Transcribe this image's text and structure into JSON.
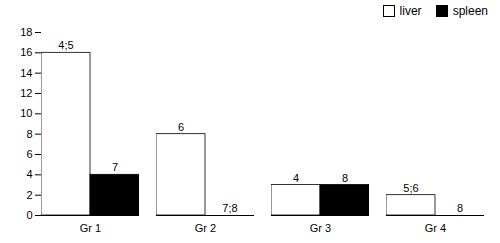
{
  "chart_data": {
    "type": "bar",
    "categories": [
      "Gr 1",
      "Gr 2",
      "Gr 3",
      "Gr 4"
    ],
    "series": [
      {
        "name": "liver",
        "color": "#ffffff",
        "values": [
          16,
          8,
          3,
          2
        ]
      },
      {
        "name": "spleen",
        "color": "#000000",
        "values": [
          4,
          0,
          3,
          0
        ]
      }
    ],
    "ylim": [
      0,
      18
    ],
    "yticks": [
      0,
      2,
      4,
      6,
      8,
      10,
      12,
      14,
      16,
      18
    ],
    "grid": false,
    "legend": "upper right",
    "annotations": [
      {
        "text": "4;5",
        "category": "Gr 1",
        "series": "liver"
      },
      {
        "text": "7",
        "category": "Gr 1",
        "series": "spleen"
      },
      {
        "text": "6",
        "category": "Gr 2",
        "series": "liver"
      },
      {
        "text": "7;8",
        "category": "Gr 2",
        "series": "spleen"
      },
      {
        "text": "4",
        "category": "Gr 3",
        "series": "liver"
      },
      {
        "text": "8",
        "category": "Gr 3",
        "series": "spleen"
      },
      {
        "text": "5;6",
        "category": "Gr 4",
        "series": "liver"
      },
      {
        "text": "8",
        "category": "Gr 4",
        "series": "spleen"
      }
    ]
  }
}
